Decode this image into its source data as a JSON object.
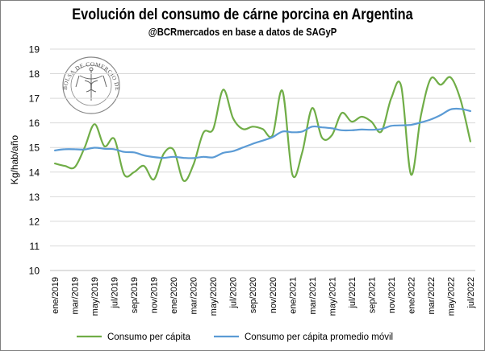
{
  "chart_data": {
    "type": "line",
    "title": "Evolución del consumo de cárne porcina en Argentina",
    "subtitle": "@BCRmercados en base a datos de SAGyP",
    "ylabel": "Kg/hab/año",
    "xlabel": "",
    "ylim": [
      10,
      19
    ],
    "yticks": [
      10,
      11,
      12,
      13,
      14,
      15,
      16,
      17,
      18,
      19
    ],
    "grid": "horizontal",
    "legend_position": "bottom",
    "x_tick_labels": [
      "ene/2019",
      "mar/2019",
      "may/2019",
      "jul/2019",
      "sep/2019",
      "nov/2019",
      "ene/2020",
      "mar/2020",
      "may/2020",
      "jul/2020",
      "sep/2020",
      "nov/2020",
      "ene/2021",
      "mar/2021",
      "may/2021",
      "jul/2021",
      "sep/2021",
      "nov/2021",
      "ene/2022",
      "mar/2022",
      "may/2022",
      "jul/2022"
    ],
    "series": [
      {
        "name": "Consumo per cápita",
        "color": "#70ad47",
        "values": [
          14.35,
          14.25,
          14.2,
          15.0,
          15.95,
          15.05,
          15.35,
          13.9,
          14.0,
          14.25,
          13.7,
          14.75,
          14.9,
          13.65,
          14.3,
          15.6,
          15.75,
          17.35,
          16.2,
          15.75,
          15.85,
          15.75,
          15.5,
          17.3,
          13.9,
          14.8,
          16.6,
          15.4,
          15.5,
          16.4,
          16.05,
          16.25,
          16.05,
          15.65,
          17.0,
          17.5,
          13.9,
          16.3,
          17.8,
          17.55,
          17.85,
          16.95,
          15.25
        ]
      },
      {
        "name": "Consumo per cápita promedio móvil",
        "color": "#5b9bd5",
        "values": [
          14.88,
          14.93,
          14.93,
          14.92,
          14.99,
          14.95,
          14.93,
          14.82,
          14.8,
          14.68,
          14.61,
          14.58,
          14.62,
          14.58,
          14.57,
          14.62,
          14.6,
          14.78,
          14.85,
          15.0,
          15.15,
          15.28,
          15.42,
          15.65,
          15.62,
          15.65,
          15.85,
          15.82,
          15.78,
          15.7,
          15.7,
          15.73,
          15.72,
          15.75,
          15.88,
          15.9,
          15.92,
          16.02,
          16.14,
          16.32,
          16.55,
          16.57,
          16.48
        ]
      }
    ]
  },
  "watermark": {
    "seal_text": "BOLSA DE COMERCIO DE ROSARIO"
  }
}
